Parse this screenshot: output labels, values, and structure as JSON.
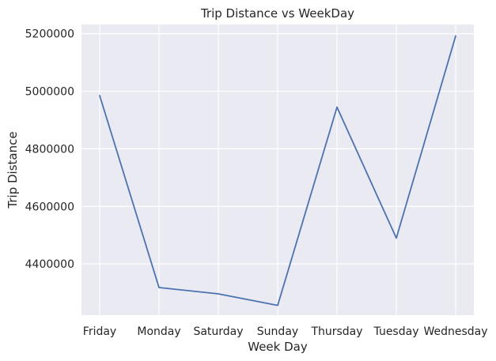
{
  "chart_data": {
    "type": "line",
    "title": "Trip Distance vs WeekDay",
    "xlabel": "Week Day",
    "ylabel": "Trip Distance",
    "categories": [
      "Friday",
      "Monday",
      "Saturday",
      "Sunday",
      "Thursday",
      "Tuesday",
      "Wednesday"
    ],
    "series": [
      {
        "values": [
          4985000,
          4318000,
          4296000,
          4256000,
          4945000,
          4490000,
          5192000
        ],
        "color": "#4c72b0"
      }
    ],
    "yticks": [
      4400000,
      4600000,
      4800000,
      5000000,
      5200000
    ],
    "ytick_labels": [
      "4400000",
      "4600000",
      "4800000",
      "5000000",
      "5200000"
    ],
    "ylim": [
      4222000,
      5232000
    ],
    "grid": true,
    "background": "#eaeaf2"
  }
}
